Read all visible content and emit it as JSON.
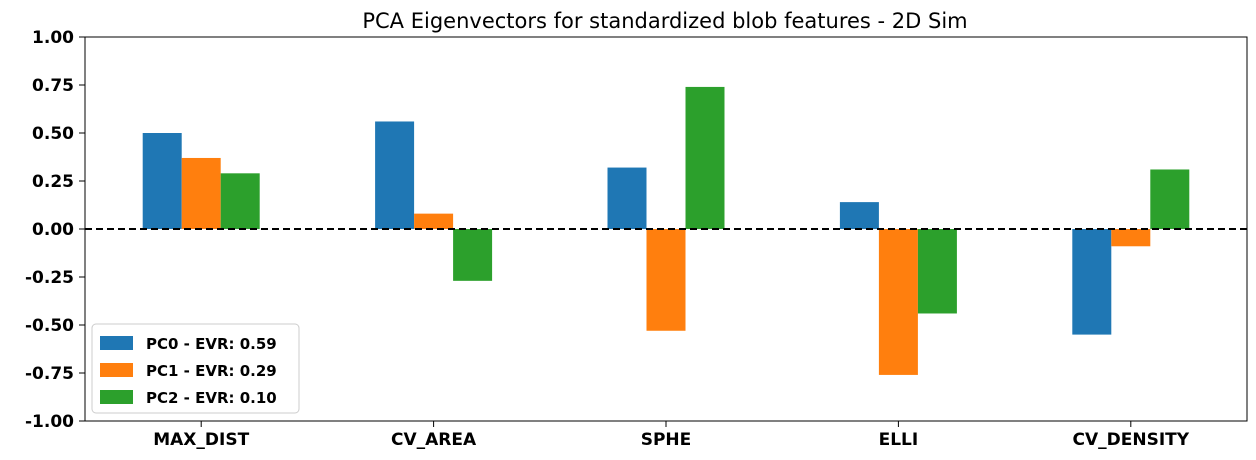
{
  "chart_data": {
    "type": "bar",
    "title": "PCA Eigenvectors for standardized blob features - 2D Sim",
    "categories": [
      "MAX_DIST",
      "CV_AREA",
      "SPHE",
      "ELLI",
      "CV_DENSITY"
    ],
    "series": [
      {
        "name": "PC0 - EVR: 0.59",
        "color": "#1f77b4",
        "values": [
          0.5,
          0.56,
          0.32,
          0.14,
          -0.55
        ]
      },
      {
        "name": "PC1 - EVR: 0.29",
        "color": "#ff7f0e",
        "values": [
          0.37,
          0.08,
          -0.53,
          -0.76,
          -0.09
        ]
      },
      {
        "name": "PC2 - EVR: 0.10",
        "color": "#2ca02c",
        "values": [
          0.29,
          -0.27,
          0.74,
          -0.44,
          0.31
        ]
      }
    ],
    "ylim": [
      -1.0,
      1.0
    ],
    "yticks": [
      "-1.00",
      "-0.75",
      "-0.50",
      "-0.25",
      "0.00",
      "0.25",
      "0.50",
      "0.75",
      "1.00"
    ],
    "xlabel": "",
    "ylabel": "",
    "reference_line": {
      "y": 0.0,
      "style": "dashed"
    },
    "legend_position": "lower-left",
    "grid": false
  }
}
